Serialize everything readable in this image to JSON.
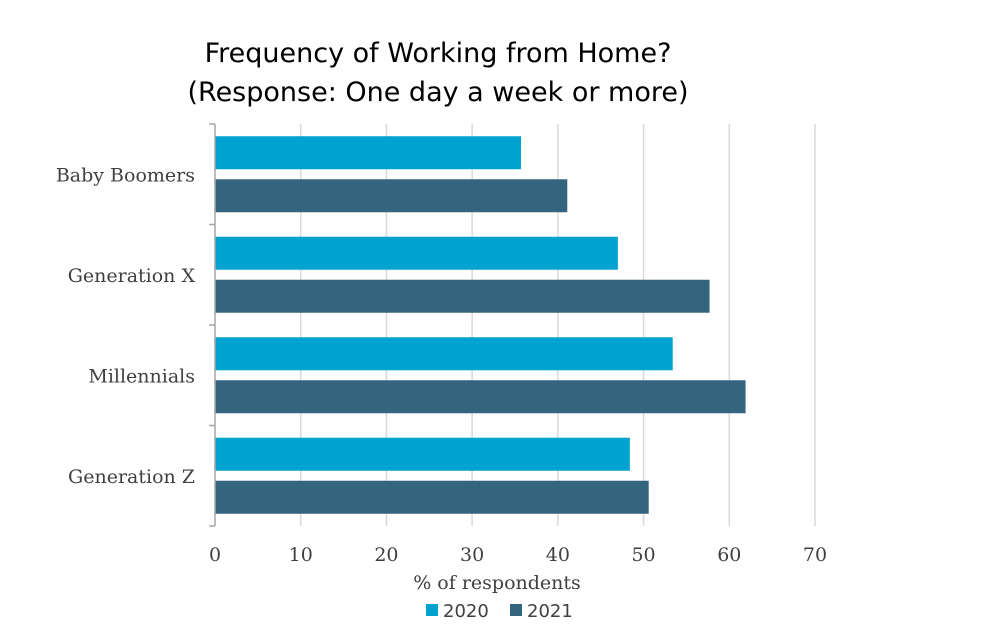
{
  "chart_data": {
    "type": "bar",
    "orientation": "horizontal",
    "title": [
      "Frequency of Working from Home?",
      "(Response: One day a week or more)"
    ],
    "xlabel": "% of respondents",
    "ylabel": "",
    "categories": [
      "Baby Boomers",
      "Generation X",
      "Millennials",
      "Generation Z"
    ],
    "series": [
      {
        "name": "2020",
        "color": "#00A2CF",
        "values": [
          35.7,
          47.0,
          53.4,
          48.4
        ]
      },
      {
        "name": "2021",
        "color": "#33667E",
        "values": [
          41.1,
          57.7,
          61.9,
          50.6
        ]
      }
    ],
    "xlim": [
      0,
      70
    ],
    "xticks": [
      0,
      10,
      20,
      30,
      40,
      50,
      60,
      70
    ],
    "grid": true,
    "legend": "bottom"
  }
}
